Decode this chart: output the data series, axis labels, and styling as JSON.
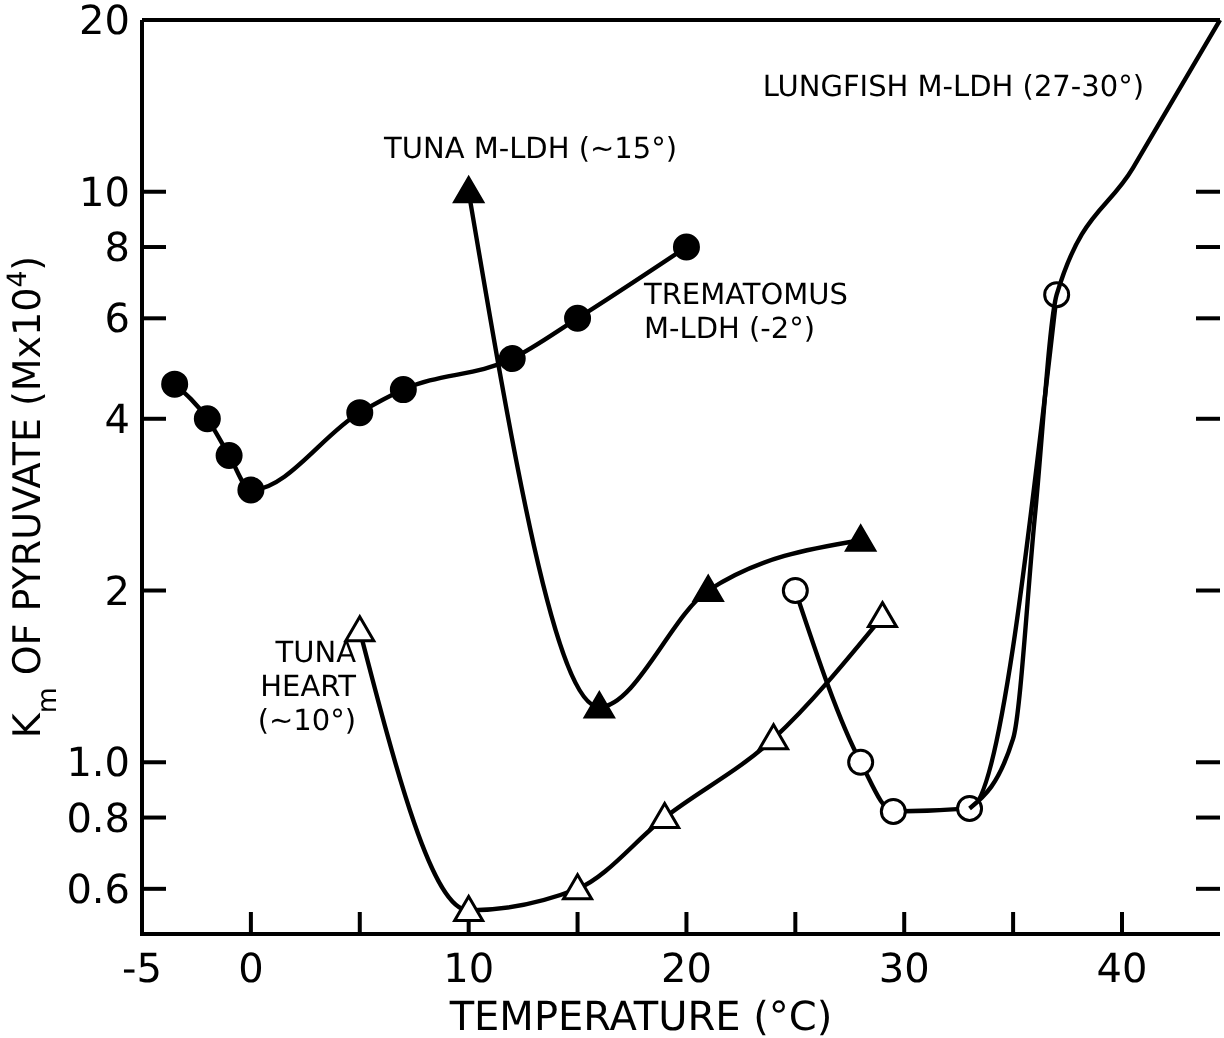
{
  "chart_data": {
    "type": "line",
    "xlabel": "TEMPERATURE (°C)",
    "ylabel": "K$_{m}$ OF PYRUVATE (Mx10$^{4}$)",
    "log": "y",
    "grid": false,
    "legend": false,
    "xlim": [
      -5,
      44.5
    ],
    "xticks": [
      -5,
      0,
      {
        "value": 5,
        "label": null
      },
      10,
      {
        "value": 15,
        "label": null
      },
      20,
      {
        "value": 25,
        "label": null
      },
      30,
      {
        "value": 35,
        "label": null
      },
      40
    ],
    "ylim": [
      0.5,
      20
    ],
    "yticks": [
      0.6,
      0.8,
      {
        "value": 1,
        "label": "1.0"
      },
      2,
      4,
      6,
      8,
      10,
      20
    ],
    "series": [
      {
        "name": "TREMATOMUS\nM-LDH (-2°)",
        "color": "#000000",
        "marker": "circle",
        "x": [
          -3.5,
          -2,
          -1,
          0,
          5,
          7,
          12,
          15,
          20
        ],
        "values": [
          4.6,
          4.0,
          3.45,
          3.0,
          4.1,
          4.5,
          5.1,
          6.0,
          8.0
        ]
      },
      {
        "name": "TUNA M-LDH (~15°)",
        "color": "#000000",
        "marker": "triangle",
        "x": [
          10,
          16,
          21,
          28
        ],
        "values": [
          10,
          1.25,
          2.0,
          2.45
        ]
      },
      {
        "name": "TUNA\nHEART\n(~10°)",
        "color": "#000000",
        "marker": "triangle",
        "x": [
          5,
          10,
          15,
          19,
          24,
          29
        ],
        "values": [
          1.7,
          0.55,
          0.6,
          0.8,
          1.1,
          1.8
        ]
      },
      {
        "color": "#000000",
        "marker": "circle",
        "x": [
          25,
          28,
          29.5,
          33,
          37
        ],
        "values": [
          2.0,
          1.0,
          0.82,
          0.83,
          6.6
        ]
      },
      {
        "name": "LUNGFISH M-LDH (27-30°)",
        "color": "#000000",
        "marker": "none",
        "x": [
          33,
          35,
          36,
          37,
          40.5,
          44.5
        ],
        "values": [
          0.83,
          1.1,
          2.7,
          6.6,
          11,
          20
        ]
      }
    ]
  }
}
